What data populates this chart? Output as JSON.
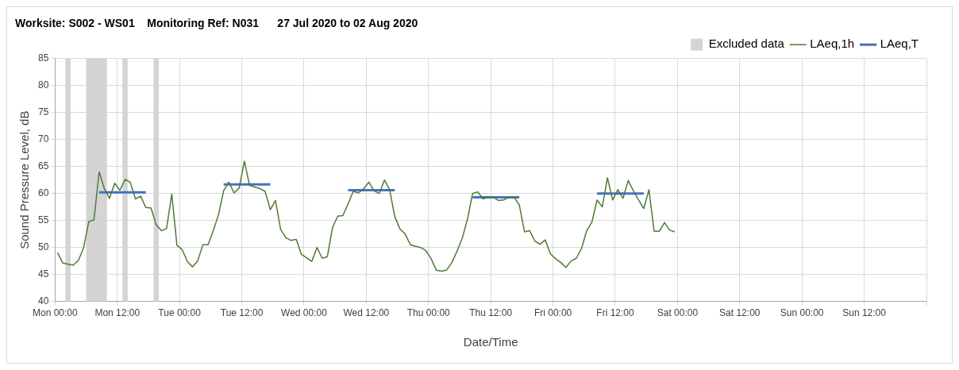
{
  "chart_data": {
    "type": "line",
    "title": "Worksite: S002 - WS01    Monitoring Ref: N031      27 Jul 2020 to 02 Aug 2020",
    "xlabel": "Date/Time",
    "ylabel": "Sound Pressure Level, dB",
    "xlim": [
      "2020-07-27T00:00",
      "2020-08-03T00:00"
    ],
    "xticks": [
      {
        "value": "2020-07-27T00:00",
        "label": "Mon 00:00"
      },
      {
        "value": "2020-07-27T12:00",
        "label": "Mon 12:00"
      },
      {
        "value": "2020-07-28T00:00",
        "label": "Tue 00:00"
      },
      {
        "value": "2020-07-28T12:00",
        "label": "Tue 12:00"
      },
      {
        "value": "2020-07-29T00:00",
        "label": "Wed 00:00"
      },
      {
        "value": "2020-07-29T12:00",
        "label": "Wed 12:00"
      },
      {
        "value": "2020-07-30T00:00",
        "label": "Thu 00:00"
      },
      {
        "value": "2020-07-30T12:00",
        "label": "Thu 12:00"
      },
      {
        "value": "2020-07-31T00:00",
        "label": "Fri 00:00"
      },
      {
        "value": "2020-07-31T12:00",
        "label": "Fri 12:00"
      },
      {
        "value": "2020-08-01T00:00",
        "label": "Sat 00:00"
      },
      {
        "value": "2020-08-01T12:00",
        "label": "Sat 12:00"
      },
      {
        "value": "2020-08-02T00:00",
        "label": "Sun 00:00"
      },
      {
        "value": "2020-08-02T12:00",
        "label": "Sun 12:00"
      },
      {
        "value": "2020-08-03T00:00",
        "label": null
      }
    ],
    "ylim": [
      40,
      85
    ],
    "yticks": [
      40,
      45,
      50,
      55,
      60,
      65,
      70,
      75,
      80,
      85
    ],
    "grid": true,
    "legend": "top right",
    "marker": "none",
    "line_style": "solid",
    "bands": [
      {
        "axis": "x",
        "from": "2020-07-27T02:00",
        "to": "2020-07-27T03:00",
        "label": "Excluded data",
        "color": "#d4d4d4"
      },
      {
        "axis": "x",
        "from": "2020-07-27T06:00",
        "to": "2020-07-27T10:00",
        "color": "#d4d4d4"
      },
      {
        "axis": "x",
        "from": "2020-07-27T13:00",
        "to": "2020-07-27T14:00",
        "color": "#d4d4d4"
      },
      {
        "axis": "x",
        "from": "2020-07-27T19:00",
        "to": "2020-07-27T20:00",
        "color": "#d4d4d4"
      }
    ],
    "series": [
      {
        "name": "LAeq,1h",
        "color": "#4f7a34",
        "x": [
          "2020-07-27T00:30",
          "2020-07-27T01:30",
          "2020-07-27T02:30",
          "2020-07-27T03:30",
          "2020-07-27T04:30",
          "2020-07-27T05:30",
          "2020-07-27T06:30",
          "2020-07-27T07:30",
          "2020-07-27T08:30",
          "2020-07-27T09:30",
          "2020-07-27T10:30",
          "2020-07-27T11:30",
          "2020-07-27T12:30",
          "2020-07-27T13:30",
          "2020-07-27T14:30",
          "2020-07-27T15:30",
          "2020-07-27T16:30",
          "2020-07-27T17:30",
          "2020-07-27T18:30",
          "2020-07-27T19:30",
          "2020-07-27T20:30",
          "2020-07-27T21:30",
          "2020-07-27T22:30",
          "2020-07-27T23:30",
          "2020-07-28T00:30",
          "2020-07-28T01:30",
          "2020-07-28T02:30",
          "2020-07-28T03:30",
          "2020-07-28T04:30",
          "2020-07-28T05:30",
          "2020-07-28T06:30",
          "2020-07-28T07:30",
          "2020-07-28T08:30",
          "2020-07-28T09:30",
          "2020-07-28T10:30",
          "2020-07-28T11:30",
          "2020-07-28T12:30",
          "2020-07-28T13:30",
          "2020-07-28T14:30",
          "2020-07-28T15:30",
          "2020-07-28T16:30",
          "2020-07-28T17:30",
          "2020-07-28T18:30",
          "2020-07-28T19:30",
          "2020-07-28T20:30",
          "2020-07-28T21:30",
          "2020-07-28T22:30",
          "2020-07-28T23:30",
          "2020-07-29T00:30",
          "2020-07-29T01:30",
          "2020-07-29T02:30",
          "2020-07-29T03:30",
          "2020-07-29T04:30",
          "2020-07-29T05:30",
          "2020-07-29T06:30",
          "2020-07-29T07:30",
          "2020-07-29T08:30",
          "2020-07-29T09:30",
          "2020-07-29T10:30",
          "2020-07-29T11:30",
          "2020-07-29T12:30",
          "2020-07-29T13:30",
          "2020-07-29T14:30",
          "2020-07-29T15:30",
          "2020-07-29T16:30",
          "2020-07-29T17:30",
          "2020-07-29T18:30",
          "2020-07-29T19:30",
          "2020-07-29T20:30",
          "2020-07-29T21:30",
          "2020-07-29T22:30",
          "2020-07-29T23:30",
          "2020-07-30T00:30",
          "2020-07-30T01:30",
          "2020-07-30T02:30",
          "2020-07-30T03:30",
          "2020-07-30T04:30",
          "2020-07-30T05:30",
          "2020-07-30T06:30",
          "2020-07-30T07:30",
          "2020-07-30T08:30",
          "2020-07-30T09:30",
          "2020-07-30T10:30",
          "2020-07-30T11:30",
          "2020-07-30T12:30",
          "2020-07-30T13:30",
          "2020-07-30T14:30",
          "2020-07-30T15:30",
          "2020-07-30T16:30",
          "2020-07-30T17:30",
          "2020-07-30T18:30",
          "2020-07-30T19:30",
          "2020-07-30T20:30",
          "2020-07-30T21:30",
          "2020-07-30T22:30",
          "2020-07-30T23:30",
          "2020-07-31T00:30",
          "2020-07-31T01:30",
          "2020-07-31T02:30",
          "2020-07-31T03:30",
          "2020-07-31T04:30",
          "2020-07-31T05:30",
          "2020-07-31T06:30",
          "2020-07-31T07:30",
          "2020-07-31T08:30",
          "2020-07-31T09:30",
          "2020-07-31T10:30",
          "2020-07-31T11:30",
          "2020-07-31T12:30",
          "2020-07-31T13:30",
          "2020-07-31T14:30",
          "2020-07-31T15:30",
          "2020-07-31T16:30",
          "2020-07-31T17:30",
          "2020-07-31T18:30",
          "2020-07-31T19:30",
          "2020-07-31T20:30",
          "2020-07-31T21:30",
          "2020-07-31T22:30",
          "2020-07-31T23:30"
        ],
        "values": [
          49,
          47.1,
          46.9,
          46.7,
          47.6,
          49.9,
          54.8,
          55.1,
          64,
          60.9,
          59.1,
          61.9,
          60.6,
          62.6,
          62.1,
          59,
          59.5,
          57.4,
          57.3,
          54.2,
          53.1,
          53.5,
          59.9,
          50.4,
          49.6,
          47.4,
          46.4,
          47.5,
          50.5,
          50.5,
          53.1,
          56,
          60.5,
          62.1,
          60.1,
          61,
          66,
          61.5,
          61.2,
          60.9,
          60.4,
          57,
          58.7,
          53.3,
          51.8,
          51.3,
          51.5,
          48.7,
          48.1,
          47.4,
          50,
          48,
          48.3,
          53.7,
          55.8,
          55.9,
          58.1,
          60.4,
          60.1,
          60.9,
          62.1,
          60.5,
          60,
          62.5,
          60.7,
          55.7,
          53.4,
          52.5,
          50.5,
          50.2,
          50,
          49.4,
          47.9,
          45.8,
          45.6,
          45.8,
          47.2,
          49.3,
          51.7,
          55.2,
          60,
          60.3,
          59,
          59.3,
          59.3,
          58.7,
          58.8,
          59.3,
          59.3,
          57.9,
          52.9,
          53.1,
          51.2,
          50.6,
          51.4,
          48.8,
          47.9,
          47.2,
          46.3,
          47.5,
          48,
          49.8,
          53.1,
          54.7,
          58.8,
          57.5,
          62.9,
          58.8,
          60.7,
          59.1,
          62.4,
          60.5,
          58.8,
          57.2,
          60.7,
          53,
          53,
          54.6,
          53.2,
          52.9
        ]
      },
      {
        "name": "LAeq,T",
        "color": "#4472c4",
        "x": [
          "2020-07-27T08:30",
          "2020-07-27T17:30",
          "2020-07-28T00:00",
          "2020-07-28T08:30",
          "2020-07-28T17:30",
          "2020-07-29T00:00",
          "2020-07-29T08:30",
          "2020-07-29T17:30",
          "2020-07-30T00:00",
          "2020-07-30T08:30",
          "2020-07-30T17:30",
          "2020-07-31T00:00",
          "2020-07-31T08:30",
          "2020-07-31T17:30"
        ],
        "values": [
          60.2,
          60.2,
          null,
          61.7,
          61.7,
          null,
          60.6,
          60.6,
          null,
          59.3,
          59.3,
          null,
          60,
          60
        ]
      }
    ]
  }
}
